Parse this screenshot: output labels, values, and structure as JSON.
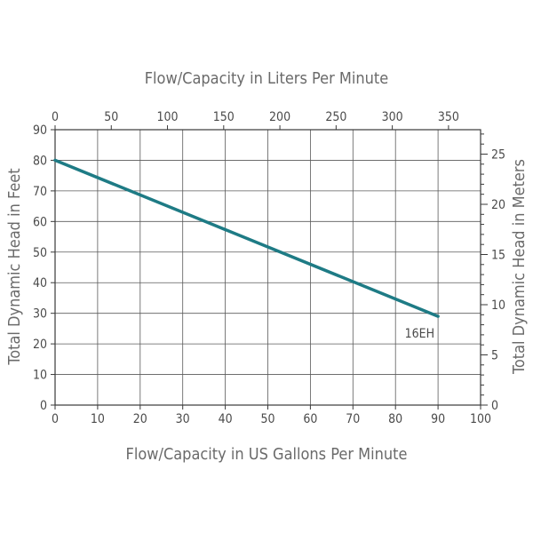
{
  "chart_data": {
    "type": "line",
    "title": "",
    "xlabel": "Flow/Capacity in US Gallons Per Minute",
    "ylabel": "Total Dynamic Head in Feet",
    "x2label": "Flow/Capacity in Liters Per Minute",
    "y2label": "Total Dynamic Head in Meters",
    "xlim": [
      0,
      100
    ],
    "ylim": [
      0,
      90
    ],
    "x2lim": [
      0,
      378.541
    ],
    "y2lim": [
      0,
      27.432
    ],
    "x_ticks": [
      0,
      10,
      20,
      30,
      40,
      50,
      60,
      70,
      80,
      90,
      100
    ],
    "y_ticks": [
      0,
      10,
      20,
      30,
      40,
      50,
      60,
      70,
      80,
      90
    ],
    "x2_ticks": [
      0,
      50,
      100,
      150,
      200,
      250,
      300,
      350
    ],
    "y2_ticks": [
      0,
      5,
      10,
      15,
      20,
      25
    ],
    "grid": true,
    "series": [
      {
        "name": "16EH",
        "color": "#1e7b85",
        "x": [
          0,
          90
        ],
        "y": [
          80,
          29
        ]
      }
    ]
  }
}
